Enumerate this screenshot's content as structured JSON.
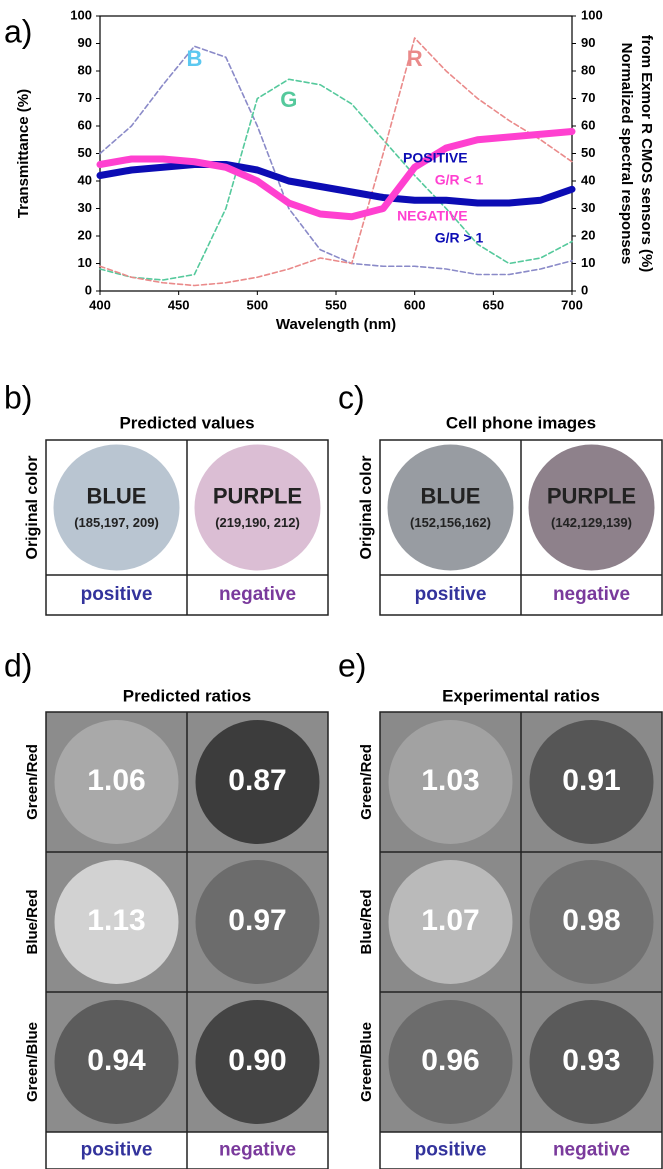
{
  "chart_data": {
    "type": "line",
    "panel_label": "a)",
    "xlabel": "Wavelength (nm)",
    "ylabel": "Transmittance (%)",
    "y2label": [
      "Normalized spectral responses",
      "from Exmor R CMOS sensors (%)"
    ],
    "x": [
      400,
      420,
      440,
      460,
      480,
      500,
      520,
      540,
      560,
      580,
      600,
      620,
      640,
      660,
      680,
      700
    ],
    "series": [
      {
        "name": "POSITIVE",
        "color": "#0c0cb4",
        "dashed": false,
        "axis": "y",
        "values": [
          42,
          44,
          45,
          46,
          46,
          44,
          40,
          38,
          36,
          34,
          33,
          33,
          32,
          32,
          33,
          37
        ]
      },
      {
        "name": "NEGATIVE",
        "color": "#ff40d0",
        "dashed": false,
        "axis": "y",
        "values": [
          46,
          48,
          48,
          47,
          45,
          40,
          32,
          28,
          27,
          30,
          45,
          52,
          55,
          56,
          57,
          58
        ]
      },
      {
        "name": "B",
        "color": "#8a8ac8",
        "label_color": "#5cc8f0",
        "dashed": true,
        "axis": "y2",
        "values": [
          50,
          60,
          75,
          89,
          85,
          60,
          30,
          15,
          10,
          9,
          9,
          8,
          6,
          6,
          8,
          11
        ]
      },
      {
        "name": "G",
        "color": "#55c99c",
        "label_color": "#55c99c",
        "dashed": true,
        "axis": "y2",
        "values": [
          8,
          5,
          4,
          6,
          30,
          70,
          77,
          75,
          68,
          55,
          42,
          30,
          17,
          10,
          12,
          18
        ]
      },
      {
        "name": "R",
        "color": "#ea8a8a",
        "label_color": "#ea8a8a",
        "dashed": true,
        "axis": "y2",
        "values": [
          9,
          5,
          3,
          2,
          3,
          5,
          8,
          12,
          10,
          50,
          92,
          80,
          70,
          62,
          55,
          47
        ]
      }
    ],
    "annotations": [
      "G/R < 1",
      "G/R > 1"
    ],
    "xlim": [
      400,
      700
    ],
    "xticks": [
      400,
      450,
      500,
      550,
      600,
      650,
      700
    ],
    "ylim": [
      0,
      100
    ],
    "yticks": [
      0,
      10,
      20,
      30,
      40,
      50,
      60,
      70,
      80,
      90,
      100
    ],
    "y2lim": [
      0,
      100
    ],
    "y2ticks": [
      0,
      10,
      20,
      30,
      40,
      50,
      60,
      70,
      80,
      90,
      100
    ],
    "grid": false
  },
  "color_panels": [
    {
      "label": "b)",
      "title": "Predicted values",
      "row_label": "Original color",
      "columns": [
        "positive",
        "negative"
      ],
      "cells": [
        {
          "name": "BLUE",
          "rgb": "(185,197, 209)",
          "color": "#b9c5d1"
        },
        {
          "name": "PURPLE",
          "rgb": "(219,190, 212)",
          "color": "#dbbed4"
        }
      ]
    },
    {
      "label": "c)",
      "title": "Cell phone images",
      "row_label": "Original color",
      "columns": [
        "positive",
        "negative"
      ],
      "cells": [
        {
          "name": "BLUE",
          "rgb": "(152,156,162)",
          "color": "#989ca2"
        },
        {
          "name": "PURPLE",
          "rgb": "(142,129,139)",
          "color": "#8e818b"
        }
      ]
    }
  ],
  "ratio_panels": [
    {
      "label": "d)",
      "title": "Predicted ratios",
      "rows": [
        "Green/Red",
        "Blue/Red",
        "Green/Blue"
      ],
      "columns": [
        "positive",
        "negative"
      ],
      "values": [
        [
          "1.06",
          "0.87"
        ],
        [
          "1.13",
          "0.97"
        ],
        [
          "0.94",
          "0.90"
        ]
      ],
      "colors": [
        [
          "#a9a9a9",
          "#3c3c3c"
        ],
        [
          "#d2d2d2",
          "#6c6c6c"
        ],
        [
          "#5c5c5c",
          "#444444"
        ]
      ],
      "background": "#8c8c8c"
    },
    {
      "label": "e)",
      "title": "Experimental ratios",
      "rows": [
        "Green/Red",
        "Blue/Red",
        "Green/Blue"
      ],
      "columns": [
        "positive",
        "negative"
      ],
      "values": [
        [
          "1.03",
          "0.91"
        ],
        [
          "1.07",
          "0.98"
        ],
        [
          "0.96",
          "0.93"
        ]
      ],
      "colors": [
        [
          "#a2a2a2",
          "#565656"
        ],
        [
          "#bababa",
          "#727272"
        ],
        [
          "#6c6c6c",
          "#5a5a5a"
        ]
      ],
      "background": "#8a8a8a"
    }
  ],
  "column_colors": [
    "#33339c",
    "#7a3a9c"
  ]
}
